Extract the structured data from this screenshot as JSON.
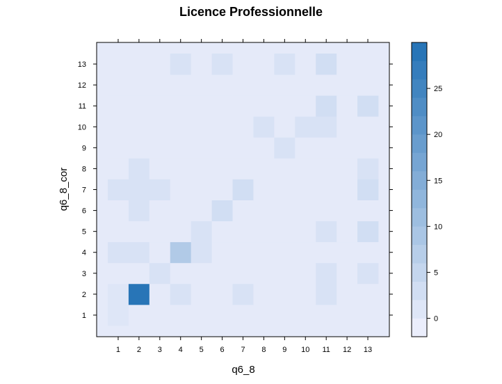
{
  "chart_data": {
    "type": "heatmap",
    "title": "Licence Professionnelle",
    "xlabel": "q6_8",
    "ylabel": "q6_8_cor",
    "x_categories": [
      "1",
      "2",
      "3",
      "4",
      "5",
      "6",
      "7",
      "8",
      "9",
      "10",
      "11",
      "12",
      "13"
    ],
    "y_categories": [
      "1",
      "2",
      "3",
      "4",
      "5",
      "6",
      "7",
      "8",
      "9",
      "10",
      "11",
      "12",
      "13"
    ],
    "values": [
      [
        1,
        0,
        0,
        0,
        0,
        0,
        0,
        0,
        0,
        0,
        0,
        0,
        0
      ],
      [
        1,
        29,
        0,
        2,
        0,
        0,
        2,
        0,
        0,
        0,
        2,
        0,
        0
      ],
      [
        0,
        0,
        2,
        0,
        0,
        0,
        0,
        0,
        0,
        0,
        2,
        0,
        2
      ],
      [
        2,
        2,
        0,
        8,
        2,
        0,
        0,
        0,
        0,
        0,
        0,
        0,
        0
      ],
      [
        0,
        0,
        0,
        0,
        2,
        0,
        0,
        0,
        0,
        0,
        2,
        0,
        3
      ],
      [
        0,
        2,
        0,
        0,
        0,
        3,
        0,
        0,
        0,
        0,
        0,
        0,
        0
      ],
      [
        2,
        2,
        2,
        0,
        0,
        0,
        3,
        0,
        0,
        0,
        0,
        0,
        3
      ],
      [
        0,
        2,
        0,
        0,
        0,
        0,
        0,
        0,
        0,
        0,
        0,
        0,
        2
      ],
      [
        0,
        0,
        0,
        0,
        0,
        0,
        0,
        0,
        2,
        0,
        0,
        0,
        0
      ],
      [
        0,
        0,
        0,
        0,
        0,
        0,
        0,
        2,
        0,
        2,
        2,
        0,
        0
      ],
      [
        0,
        0,
        0,
        0,
        0,
        0,
        0,
        0,
        0,
        0,
        3,
        0,
        3
      ],
      [
        0,
        0,
        0,
        0,
        0,
        0,
        0,
        0,
        0,
        0,
        0,
        0,
        0
      ],
      [
        0,
        0,
        0,
        2,
        0,
        2,
        0,
        0,
        2,
        0,
        3,
        0,
        0
      ]
    ],
    "colorbar": {
      "min": -2,
      "max": 30,
      "step": 2,
      "ticks": [
        "0",
        "5",
        "10",
        "15",
        "20",
        "25"
      ],
      "tick_values": [
        0,
        5,
        10,
        15,
        20,
        25
      ],
      "low_color": "#f2f2fe",
      "high_color": "#2171b5"
    },
    "grid": false,
    "legend": "right"
  }
}
